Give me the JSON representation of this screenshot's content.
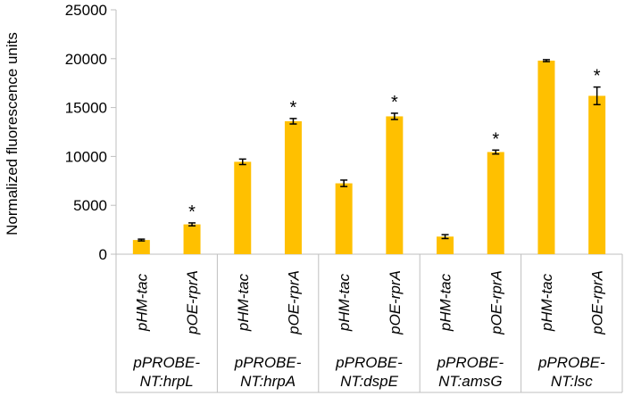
{
  "chart_data": {
    "type": "bar",
    "ylabel": "Normalized fluorescence units",
    "ylim": [
      0,
      25000
    ],
    "yticks": [
      0,
      5000,
      10000,
      15000,
      20000,
      25000
    ],
    "grid": false,
    "bar_color": "#FFC000",
    "groups": [
      {
        "label_line1": "pPROBE-",
        "label_line2": "NT:hrpL",
        "bars": [
          {
            "category": "pHM-tac",
            "value": 1450,
            "error": 90,
            "significant": false
          },
          {
            "category": "pOE-rprA",
            "value": 3050,
            "error": 150,
            "significant": true
          }
        ]
      },
      {
        "label_line1": "pPROBE-",
        "label_line2": "NT:hrpA",
        "bars": [
          {
            "category": "pHM-tac",
            "value": 9450,
            "error": 280,
            "significant": false
          },
          {
            "category": "pOE-rprA",
            "value": 13600,
            "error": 280,
            "significant": true
          }
        ]
      },
      {
        "label_line1": "pPROBE-",
        "label_line2": "NT:dspE",
        "bars": [
          {
            "category": "pHM-tac",
            "value": 7250,
            "error": 330,
            "significant": false
          },
          {
            "category": "pOE-rprA",
            "value": 14100,
            "error": 320,
            "significant": true
          }
        ]
      },
      {
        "label_line1": "pPROBE-",
        "label_line2": "NT:amsG",
        "bars": [
          {
            "category": "pHM-tac",
            "value": 1800,
            "error": 200,
            "significant": false
          },
          {
            "category": "pOE-rprA",
            "value": 10450,
            "error": 200,
            "significant": true
          }
        ]
      },
      {
        "label_line1": "pPROBE-",
        "label_line2": "NT:lsc",
        "bars": [
          {
            "category": "pHM-tac",
            "value": 19800,
            "error": 100,
            "significant": false
          },
          {
            "category": "pOE-rprA",
            "value": 16200,
            "error": 900,
            "significant": true
          }
        ]
      }
    ],
    "significance_marker": "*"
  }
}
